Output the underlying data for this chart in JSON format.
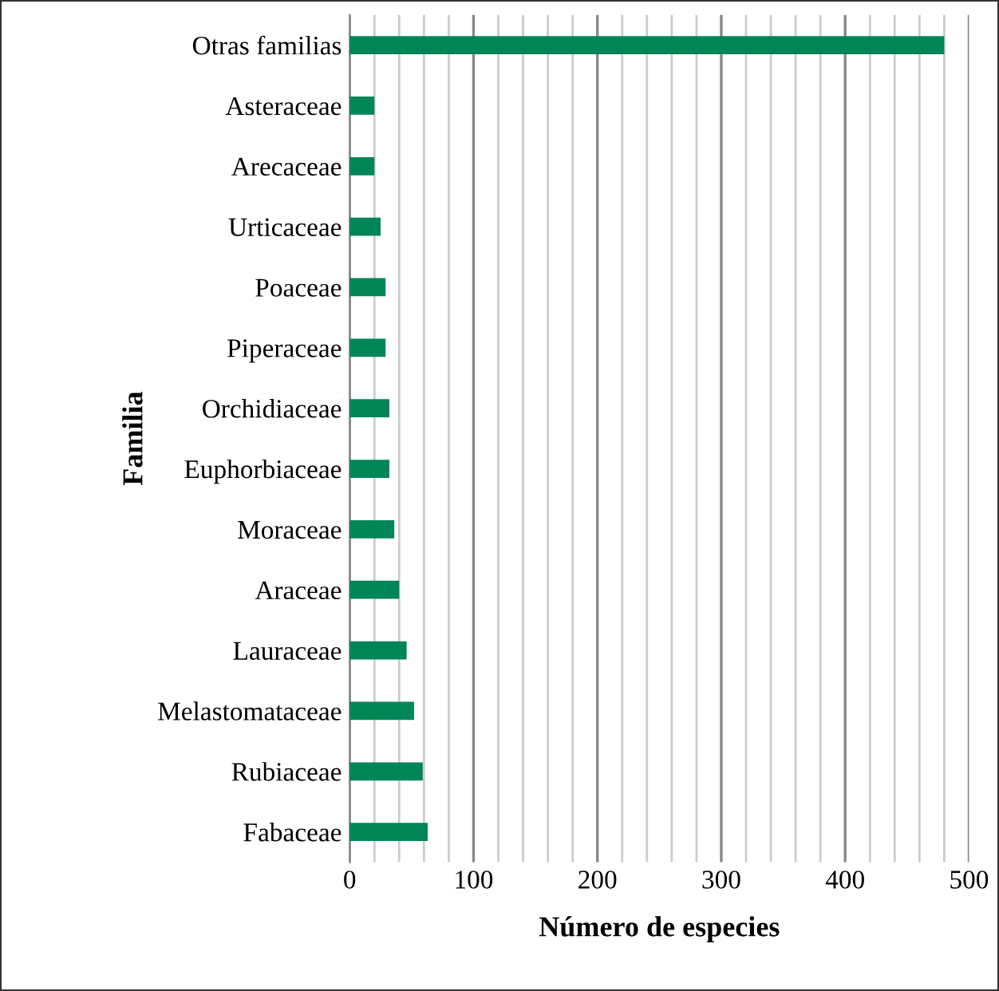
{
  "chart_data": {
    "type": "bar",
    "orientation": "horizontal",
    "xlabel": "Número de especies",
    "ylabel": "Familia",
    "categories": [
      "Otras familias",
      "Asteraceae",
      "Arecaceae",
      "Urticaceae",
      "Poaceae",
      "Piperaceae",
      "Orchidiaceae",
      "Euphorbiaceae",
      "Moraceae",
      "Araceae",
      "Lauraceae",
      "Melastomataceae",
      "Rubiaceae",
      "Fabaceae"
    ],
    "values": [
      480,
      20,
      20,
      25,
      29,
      29,
      32,
      32,
      36,
      40,
      46,
      52,
      59,
      63
    ],
    "color": "#008557",
    "xlim": [
      0,
      500
    ],
    "xticks": [
      0,
      100,
      200,
      300,
      400,
      500
    ],
    "grid": "x",
    "legend": false
  }
}
